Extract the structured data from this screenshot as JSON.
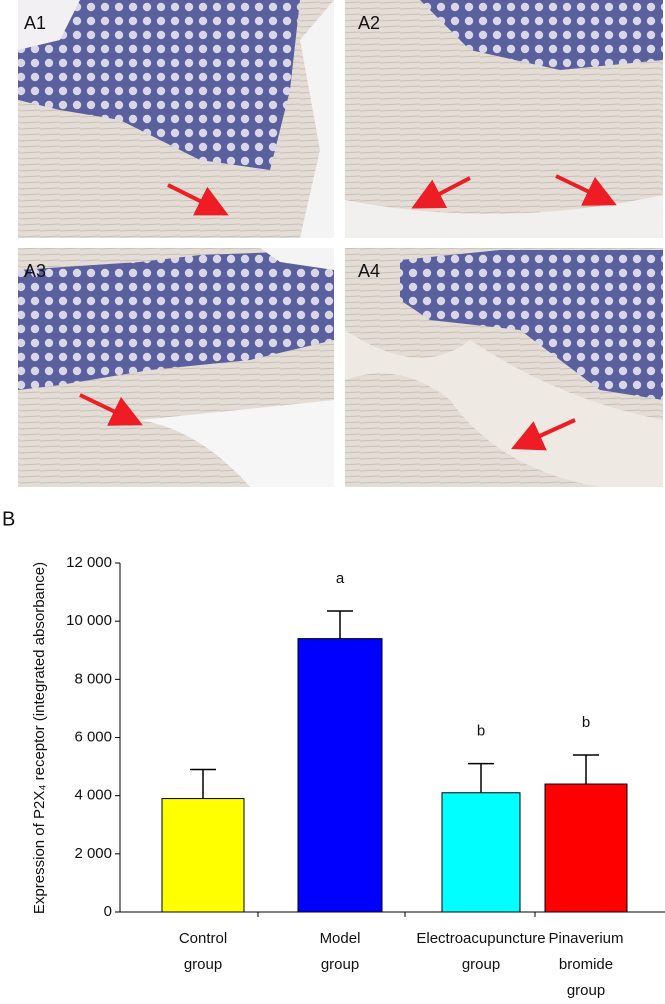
{
  "figure": {
    "panels": [
      {
        "label": "A1"
      },
      {
        "label": "A2"
      },
      {
        "label": "A3"
      },
      {
        "label": "A4"
      }
    ],
    "chart_label": "B"
  },
  "chart_data": {
    "type": "bar",
    "y_label": "Expression of P2X₄ receptor (integrated absorbance)",
    "categories": [
      [
        "Control",
        "group"
      ],
      [
        "Model",
        "group"
      ],
      [
        "Electroacupuncture",
        "group"
      ],
      [
        "Pinaverium",
        "bromide",
        "group"
      ]
    ],
    "values": [
      3900,
      9400,
      4100,
      4400
    ],
    "errors": [
      1000,
      950,
      1000,
      1000
    ],
    "colors": [
      "#ffff00",
      "#0000ff",
      "#00ffff",
      "#ff0000"
    ],
    "annotations": [
      null,
      "a",
      "b",
      "b"
    ],
    "ylim": [
      0,
      12000
    ],
    "yticks": [
      0,
      {
        "value": 2000,
        "label": "2 000"
      },
      {
        "value": 4000,
        "label": "4 000"
      },
      {
        "value": 6000,
        "label": "6 000"
      },
      {
        "value": 8000,
        "label": "8 000"
      },
      {
        "value": 10000,
        "label": "10 000"
      },
      {
        "value": 12000,
        "label": "12 000"
      }
    ]
  }
}
